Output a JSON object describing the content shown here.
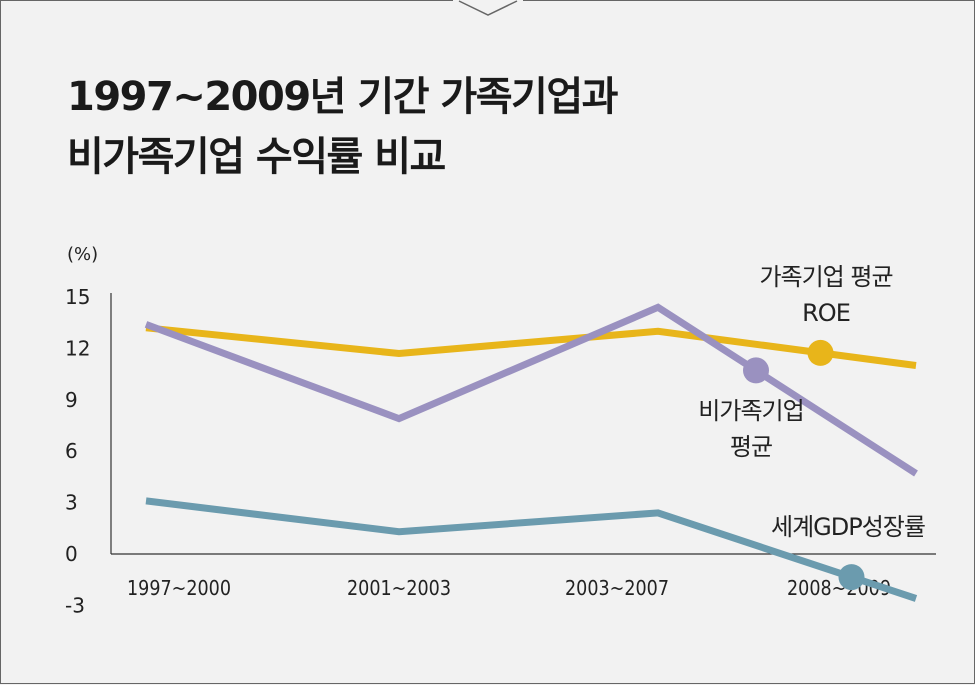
{
  "title_lines": [
    "1997~2009년 기간 가족기업과",
    "비가족기업 수익률 비교"
  ],
  "chart_data": {
    "type": "line",
    "title": "1997~2009년 기간 가족기업과 비가족기업 수익률 비교",
    "ylabel": "(%)",
    "xlabel": "",
    "categories": [
      "1997~2000",
      "2001~2003",
      "2003~2007",
      "2008~2009"
    ],
    "yticks": [
      15,
      12,
      9,
      6,
      3,
      0,
      -3
    ],
    "ylim": [
      -3,
      15
    ],
    "grid": false,
    "series": [
      {
        "name": "가족기업 평균 ROE",
        "label_lines": [
          "가족기업 평균",
          "ROE"
        ],
        "color": "#e8b51a",
        "values": [
          13.2,
          11.7,
          13.0,
          11.0
        ]
      },
      {
        "name": "비가족기업 평균",
        "label_lines": [
          "비가족기업",
          "평균"
        ],
        "color": "#9a91c0",
        "values": [
          13.4,
          7.9,
          14.4,
          4.7
        ]
      },
      {
        "name": "세계GDP성장률",
        "label_lines": [
          "세계GDP성장률"
        ],
        "color": "#6b9bae",
        "values": [
          3.1,
          1.3,
          2.4,
          -2.6
        ]
      }
    ]
  }
}
